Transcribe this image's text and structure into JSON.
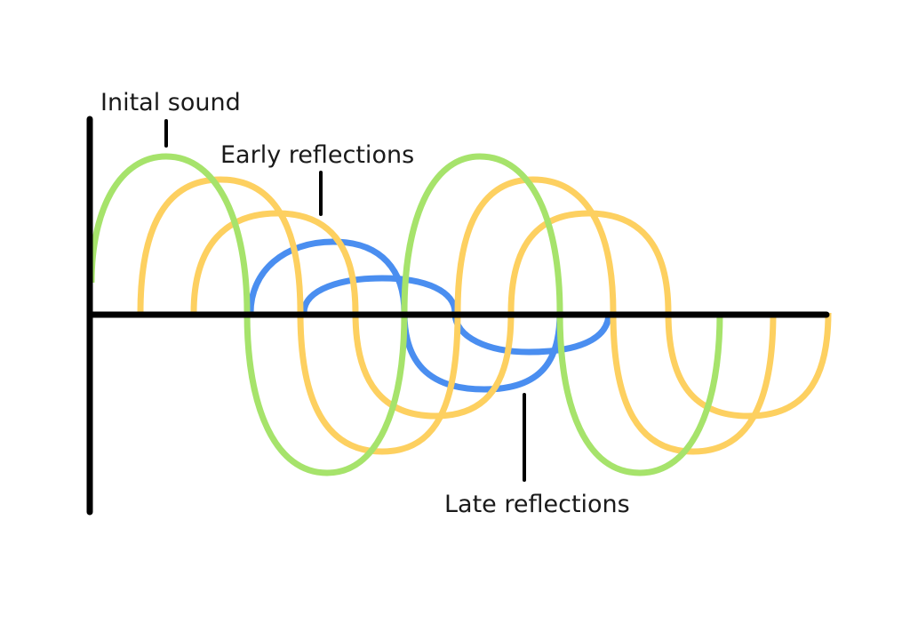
{
  "labels": {
    "initial_sound": "Inital sound",
    "early_reflections": "Early reflections",
    "late_reflections": "Late reflections"
  },
  "colors": {
    "initial_sound": "#a6e36b",
    "early_reflections": "#fdd060",
    "late_reflections": "#4a8ef0",
    "axis": "#000000",
    "text": "#1a1a1a"
  }
}
